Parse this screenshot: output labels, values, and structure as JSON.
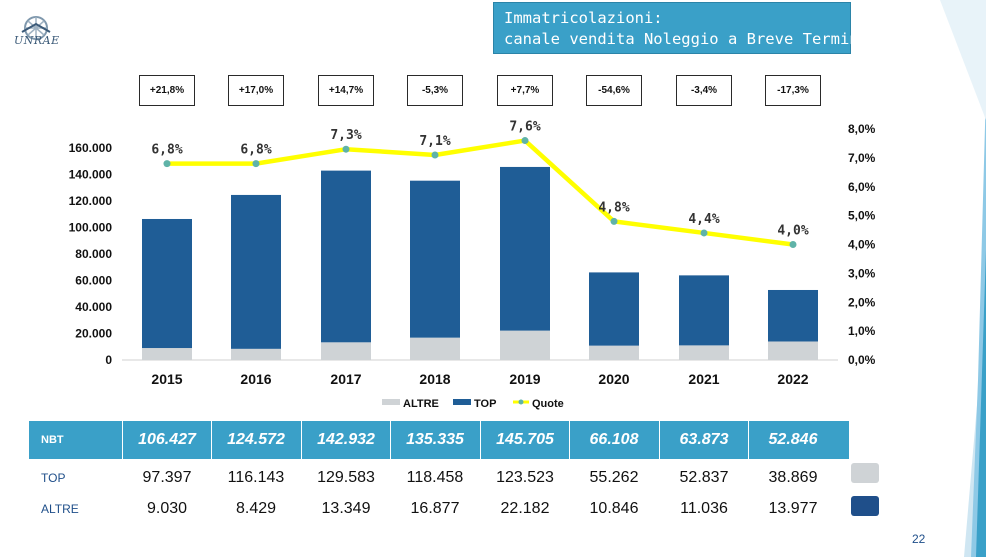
{
  "logo": {
    "text": "UNRAE"
  },
  "title": {
    "line1": "Immatricolazioni:",
    "line2": "canale vendita Noleggio a Breve Termine"
  },
  "page_number": "22",
  "growth_labels": [
    "+21,8%",
    "+17,0%",
    "+14,7%",
    "-5,3%",
    "+7,7%",
    "-54,6%",
    "-3,4%",
    "-17,3%"
  ],
  "table": {
    "rows": [
      {
        "label": "NBT",
        "values": [
          "106.427",
          "124.572",
          "142.932",
          "135.335",
          "145.705",
          "66.108",
          "63.873",
          "52.846"
        ]
      },
      {
        "label": "TOP",
        "values": [
          "97.397",
          "116.143",
          "129.583",
          "118.458",
          "123.523",
          "55.262",
          "52.837",
          "38.869"
        ]
      },
      {
        "label": "ALTRE",
        "values": [
          "9.030",
          "8.429",
          "13.349",
          "16.877",
          "22.182",
          "10.846",
          "11.036",
          "13.977"
        ]
      }
    ]
  },
  "chart_data": {
    "type": "bar",
    "stacked": true,
    "categories": [
      "2015",
      "2016",
      "2017",
      "2018",
      "2019",
      "2020",
      "2021",
      "2022"
    ],
    "series": [
      {
        "name": "ALTRE",
        "type": "bar",
        "color": "#cfd3d6",
        "values": [
          9030,
          8429,
          13349,
          16877,
          22182,
          10846,
          11036,
          13977
        ]
      },
      {
        "name": "TOP",
        "type": "bar",
        "color": "#1f5d96",
        "values": [
          97397,
          116143,
          129583,
          118458,
          123523,
          55262,
          52837,
          38869
        ]
      },
      {
        "name": "Quote",
        "type": "line",
        "axis": "right",
        "color": "#ffff00",
        "marker_color": "#5fb3a8",
        "values": [
          6.8,
          6.8,
          7.3,
          7.1,
          7.6,
          4.8,
          4.4,
          4.0
        ],
        "labels": [
          "6,8%",
          "6,8%",
          "7,3%",
          "7,1%",
          "7,6%",
          "4,8%",
          "4,4%",
          "4,0%"
        ]
      }
    ],
    "left_axis": {
      "ylim": [
        0,
        160000
      ],
      "ticks": [
        "0",
        "20.000",
        "40.000",
        "60.000",
        "80.000",
        "100.000",
        "120.000",
        "140.000",
        "160.000"
      ]
    },
    "right_axis": {
      "ylim": [
        0,
        8
      ],
      "ticks": [
        "0,0%",
        "1,0%",
        "2,0%",
        "3,0%",
        "4,0%",
        "5,0%",
        "6,0%",
        "7,0%",
        "8,0%"
      ]
    },
    "legend": {
      "placement": "bottom",
      "entries": [
        "ALTRE",
        "TOP",
        "Quote"
      ]
    },
    "grid": false
  }
}
